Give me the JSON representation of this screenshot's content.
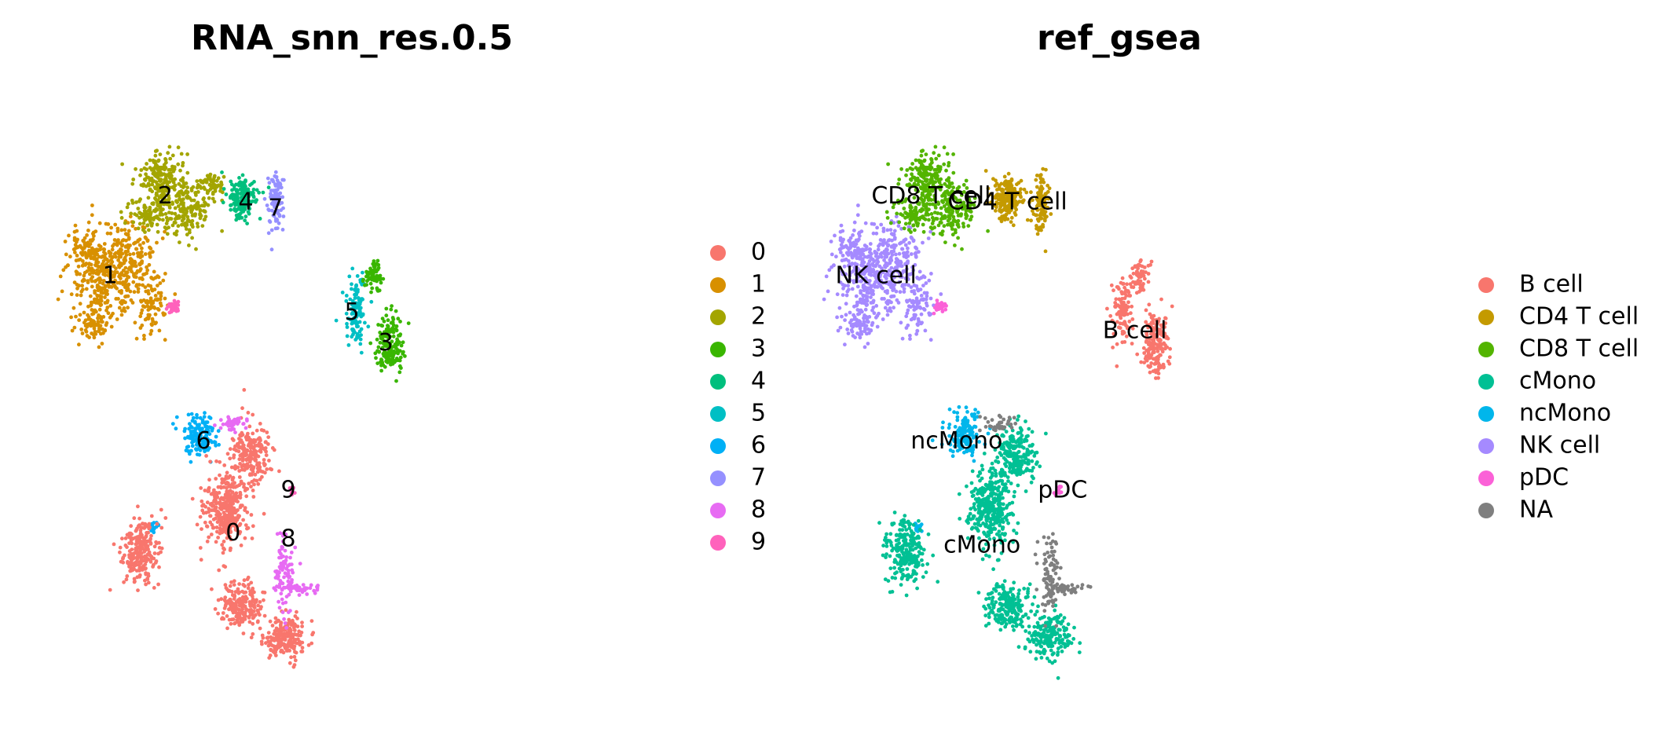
{
  "chart_data": [
    {
      "type": "scatter",
      "title": "RNA_snn_res.0.5",
      "xlabel": "",
      "ylabel": "",
      "grid": false,
      "axes": false,
      "legend": {
        "placement": "right",
        "entries": [
          {
            "label": "0",
            "color": "#F8766D"
          },
          {
            "label": "1",
            "color": "#D89000"
          },
          {
            "label": "2",
            "color": "#A3A500"
          },
          {
            "label": "3",
            "color": "#39B600"
          },
          {
            "label": "4",
            "color": "#00BF7D"
          },
          {
            "label": "5",
            "color": "#00BFC4"
          },
          {
            "label": "6",
            "color": "#00B0F6"
          },
          {
            "label": "7",
            "color": "#9590FF"
          },
          {
            "label": "8",
            "color": "#E76BF3"
          },
          {
            "label": "9",
            "color": "#FF62BC"
          }
        ]
      },
      "xlim": [
        0,
        100
      ],
      "ylim": [
        0,
        100
      ],
      "clusters": [
        {
          "label": "1",
          "color": "#D89000",
          "show_label": true,
          "label_at": [
            13,
            69
          ],
          "blobs": [
            [
              12,
              68,
              7,
              6,
              280
            ],
            [
              8,
              73,
              5,
              4,
              110
            ],
            [
              18,
              73,
              5,
              5,
              130
            ],
            [
              23,
              65,
              3,
              6,
              90
            ],
            [
              9,
              61,
              4,
              3,
              60
            ]
          ]
        },
        {
          "label": "2",
          "color": "#A3A500",
          "show_label": true,
          "label_at": [
            26,
            82
          ],
          "blobs": [
            [
              25,
              85,
              5,
              4,
              180
            ],
            [
              31,
              80,
              5,
              4,
              160
            ],
            [
              22,
              79,
              4,
              3,
              90
            ],
            [
              37,
              84,
              3,
              2,
              60
            ]
          ]
        },
        {
          "label": "4",
          "color": "#00BF7D",
          "show_label": true,
          "label_at": [
            45,
            81
          ],
          "blobs": [
            [
              44,
              82,
              3.2,
              3.2,
              170
            ]
          ]
        },
        {
          "label": "7",
          "color": "#9590FF",
          "show_label": true,
          "label_at": [
            52,
            80
          ],
          "blobs": [
            [
              52,
              81,
              1.6,
              4.4,
              110
            ]
          ]
        },
        {
          "label": "5",
          "color": "#00BFC4",
          "show_label": true,
          "label_at": [
            70,
            63
          ],
          "blobs": [
            [
              71,
              63,
              2.2,
              5,
              110
            ]
          ]
        },
        {
          "label": "3",
          "color": "#39B600",
          "show_label": true,
          "label_at": [
            78,
            58
          ],
          "blobs": [
            [
              79,
              58,
              2.8,
              4.5,
              180
            ],
            [
              75,
              69,
              2,
              2.5,
              60
            ]
          ]
        },
        {
          "label": "6",
          "color": "#00B0F6",
          "show_label": true,
          "label_at": [
            35,
            42
          ],
          "blobs": [
            [
              34,
              43,
              3.6,
              3.2,
              150
            ],
            [
              23,
              28,
              0.9,
              1.0,
              15
            ]
          ]
        },
        {
          "label": "0",
          "color": "#F8766D",
          "show_label": true,
          "label_at": [
            42,
            27
          ],
          "blobs": [
            [
              46,
              40,
              4.5,
              4.5,
              220
            ],
            [
              40,
              31,
              4.5,
              5.5,
              330
            ],
            [
              44,
              15,
              4.5,
              3.5,
              200
            ],
            [
              54,
              10,
              4.5,
              3.5,
              200
            ],
            [
              20,
              24,
              4,
              5,
              230
            ]
          ]
        },
        {
          "label": "8",
          "color": "#E76BF3",
          "show_label": true,
          "label_at": [
            55,
            26
          ],
          "blobs": [
            [
              54,
              20,
              2,
              6,
              90
            ],
            [
              58,
              18,
              3.5,
              0.8,
              40
            ],
            [
              42,
              45,
              4,
              1.2,
              40
            ]
          ]
        },
        {
          "label": "9",
          "color": "#FF62BC",
          "show_label": true,
          "label_at": [
            55,
            34
          ],
          "blobs": [
            [
              28,
              64,
              1.3,
              0.8,
              35
            ],
            [
              56,
              34,
              0.7,
              0.8,
              12
            ]
          ]
        }
      ]
    },
    {
      "type": "scatter",
      "title": "ref_gsea",
      "xlabel": "",
      "ylabel": "",
      "grid": false,
      "axes": false,
      "legend": {
        "placement": "right",
        "entries": [
          {
            "label": "B cell",
            "color": "#F8766D"
          },
          {
            "label": "CD4 T cell",
            "color": "#C49A00"
          },
          {
            "label": "CD8 T cell",
            "color": "#53B400"
          },
          {
            "label": "cMono",
            "color": "#00C094"
          },
          {
            "label": "ncMono",
            "color": "#00B6EB"
          },
          {
            "label": "NK cell",
            "color": "#A58AFF"
          },
          {
            "label": "pDC",
            "color": "#FB61D7"
          },
          {
            "label": "NA",
            "color": "#7F7F7F"
          }
        ]
      },
      "xlim": [
        0,
        100
      ],
      "ylim": [
        0,
        100
      ],
      "clusters": [
        {
          "label": "NK cell",
          "color": "#A58AFF",
          "show_label": true,
          "label_at": [
            13,
            69
          ],
          "blobs": [
            [
              12,
              68,
              7,
              6,
              280
            ],
            [
              8,
              73,
              5,
              4,
              110
            ],
            [
              18,
              73,
              5,
              5,
              130
            ],
            [
              23,
              65,
              3,
              6,
              90
            ],
            [
              9,
              61,
              4,
              3,
              60
            ]
          ]
        },
        {
          "label": "CD8 T cell",
          "color": "#53B400",
          "show_label": true,
          "label_at": [
            26,
            82
          ],
          "blobs": [
            [
              25,
              85,
              5,
              4,
              180
            ],
            [
              31,
              80,
              5,
              4,
              160
            ],
            [
              22,
              79,
              4,
              3,
              90
            ]
          ]
        },
        {
          "label": "CD4 T cell",
          "color": "#C49A00",
          "show_label": true,
          "label_at": [
            44,
            81
          ],
          "blobs": [
            [
              44,
              82,
              3.5,
              3.4,
              190
            ],
            [
              52,
              81,
              1.6,
              4.4,
              110
            ]
          ]
        },
        {
          "label": "B cell",
          "color": "#F8766D",
          "show_label": true,
          "label_at": [
            74,
            60
          ],
          "blobs": [
            [
              71,
              63,
              2.2,
              5,
              110
            ],
            [
              79,
              58,
              2.8,
              4.5,
              180
            ],
            [
              75,
              69,
              2,
              2.5,
              60
            ]
          ]
        },
        {
          "label": "ncMono",
          "color": "#00B6EB",
          "show_label": true,
          "label_at": [
            32,
            42
          ],
          "blobs": [
            [
              34,
              43,
              3.6,
              3.2,
              150
            ],
            [
              23,
              28,
              0.9,
              1.0,
              15
            ]
          ]
        },
        {
          "label": "cMono",
          "color": "#00C094",
          "show_label": true,
          "label_at": [
            38,
            25
          ],
          "blobs": [
            [
              46,
              40,
              4.5,
              4.5,
              220
            ],
            [
              40,
              31,
              4.5,
              5.5,
              330
            ],
            [
              44,
              15,
              4.5,
              3.5,
              200
            ],
            [
              54,
              10,
              4.5,
              3.5,
              200
            ],
            [
              20,
              24,
              4,
              5,
              230
            ]
          ]
        },
        {
          "label": "NA",
          "color": "#7F7F7F",
          "show_label": false,
          "label_at": [
            55,
            20
          ],
          "blobs": [
            [
              54,
              20,
              2,
              6,
              90
            ],
            [
              58,
              18,
              3.5,
              0.8,
              40
            ],
            [
              42,
              45,
              4,
              1.2,
              40
            ]
          ]
        },
        {
          "label": "pDC",
          "color": "#FB61D7",
          "show_label": true,
          "label_at": [
            57,
            34
          ],
          "blobs": [
            [
              28,
              64,
              1.3,
              0.8,
              35
            ],
            [
              56,
              34,
              0.7,
              0.8,
              12
            ]
          ]
        }
      ]
    }
  ]
}
